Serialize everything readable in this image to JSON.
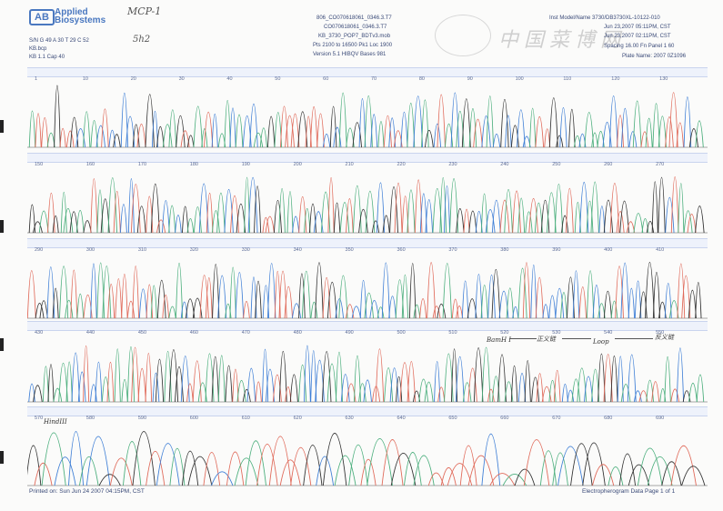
{
  "brand": {
    "mark": "AB",
    "line1": "Applied",
    "line2": "Biosystems"
  },
  "header_left": [
    "S/N G 49 A 30 T 29 C 52",
    "KB.bcp",
    "KB 1.1     Cap 40"
  ],
  "header_center": [
    "806_CO070618061_0346.3.T7",
    "CO070618061_0346.3.T7",
    "KB_3730_POP7_BDTv3.mob",
    "Pts 2100 to 16500 Pk1 Loc 1900",
    "Version 5.1     HIBQV Bases 981"
  ],
  "header_right": [
    "Inst Model/Name 3730/DB3730XL-10122-010",
    "Jun 23,2007 05:11PM, CST",
    "Jun 23,2007 02:11PM, CST",
    "Spacing 16.00 Fn Panel 1 60",
    "Plate Name: 2007 0Z1096"
  ],
  "handwriting": {
    "tag": "MCP-1",
    "sub": "5h2",
    "watermark": "中国菜博网"
  },
  "rows": [
    {
      "ticks": [
        "1",
        "10",
        "20",
        "30",
        "40",
        "50",
        "60",
        "70",
        "80",
        "90",
        "100",
        "110",
        "120",
        "130"
      ]
    },
    {
      "ticks": [
        "150",
        "160",
        "170",
        "180",
        "190",
        "200",
        "210",
        "220",
        "230",
        "240",
        "250",
        "260",
        "270"
      ]
    },
    {
      "ticks": [
        "290",
        "300",
        "310",
        "320",
        "330",
        "340",
        "350",
        "360",
        "370",
        "380",
        "390",
        "400",
        "410"
      ]
    },
    {
      "ticks": [
        "430",
        "440",
        "450",
        "460",
        "470",
        "480",
        "490",
        "500",
        "510",
        "520",
        "530",
        "540",
        "550"
      ]
    },
    {
      "ticks": [
        "570",
        "580",
        "590",
        "600",
        "610",
        "620",
        "630",
        "640",
        "650",
        "660",
        "670",
        "680",
        "690"
      ]
    }
  ],
  "annotations": [
    "BamH I",
    "正义链",
    "Loop",
    "反义链",
    "HindIII"
  ],
  "footer": {
    "printed": "Printed on: Sun Jun 24 2007 04:15PM, CST",
    "page": "Electropherogram Data   Page 1 of 1"
  },
  "colors": {
    "A": "#4caf7d",
    "C": "#3f7fd6",
    "G": "#333333",
    "T": "#e06a5a"
  }
}
